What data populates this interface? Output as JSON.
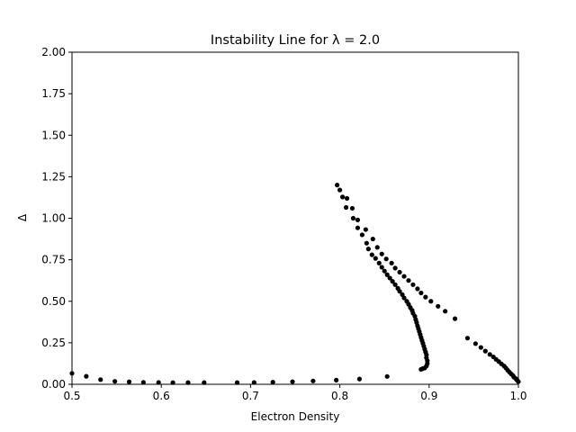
{
  "chart_data": {
    "type": "scatter",
    "title": "Instability Line for λ =  2.0",
    "xlabel": "Electron Density",
    "ylabel": "Δ",
    "xlim": [
      0.5,
      1.0
    ],
    "ylim": [
      0.0,
      2.0
    ],
    "xticks": [
      "0.5",
      "0.6",
      "0.7",
      "0.8",
      "0.9",
      "1.0"
    ],
    "yticks": [
      "0.00",
      "0.25",
      "0.50",
      "0.75",
      "1.00",
      "1.25",
      "1.50",
      "1.75",
      "2.00"
    ],
    "grid": false,
    "marker_color": "#000000",
    "points": [
      [
        0.5,
        0.066
      ],
      [
        0.516,
        0.048
      ],
      [
        0.532,
        0.028
      ],
      [
        0.548,
        0.018
      ],
      [
        0.564,
        0.015
      ],
      [
        0.58,
        0.012
      ],
      [
        0.597,
        0.011
      ],
      [
        0.613,
        0.01
      ],
      [
        0.63,
        0.01
      ],
      [
        0.648,
        0.01
      ],
      [
        0.685,
        0.01
      ],
      [
        0.704,
        0.011
      ],
      [
        0.725,
        0.013
      ],
      [
        0.747,
        0.016
      ],
      [
        0.77,
        0.02
      ],
      [
        0.796,
        0.025
      ],
      [
        0.822,
        0.032
      ],
      [
        0.853,
        0.047
      ],
      [
        0.797,
        1.2
      ],
      [
        0.8,
        1.17
      ],
      [
        0.803,
        1.128
      ],
      [
        0.808,
        1.12
      ],
      [
        0.807,
        1.065
      ],
      [
        0.814,
        1.06
      ],
      [
        0.815,
        1.0
      ],
      [
        0.82,
        0.99
      ],
      [
        0.82,
        0.942
      ],
      [
        0.825,
        0.9
      ],
      [
        0.829,
        0.932
      ],
      [
        0.83,
        0.85
      ],
      [
        0.832,
        0.815
      ],
      [
        0.836,
        0.78
      ],
      [
        0.837,
        0.875
      ],
      [
        0.84,
        0.758
      ],
      [
        0.842,
        0.825
      ],
      [
        0.844,
        0.73
      ],
      [
        0.847,
        0.785
      ],
      [
        0.847,
        0.705
      ],
      [
        0.85,
        0.682
      ],
      [
        0.852,
        0.755
      ],
      [
        0.853,
        0.66
      ],
      [
        0.856,
        0.64
      ],
      [
        0.858,
        0.73
      ],
      [
        0.859,
        0.62
      ],
      [
        0.862,
        0.6
      ],
      [
        0.862,
        0.7
      ],
      [
        0.865,
        0.578
      ],
      [
        0.867,
        0.675
      ],
      [
        0.867,
        0.56
      ],
      [
        0.87,
        0.54
      ],
      [
        0.872,
        0.65
      ],
      [
        0.872,
        0.52
      ],
      [
        0.875,
        0.5
      ],
      [
        0.877,
        0.625
      ],
      [
        0.877,
        0.482
      ],
      [
        0.879,
        0.462
      ],
      [
        0.881,
        0.445
      ],
      [
        0.882,
        0.6
      ],
      [
        0.882,
        0.428
      ],
      [
        0.884,
        0.41
      ],
      [
        0.885,
        0.39
      ],
      [
        0.887,
        0.575
      ],
      [
        0.886,
        0.372
      ],
      [
        0.887,
        0.352
      ],
      [
        0.888,
        0.335
      ],
      [
        0.889,
        0.318
      ],
      [
        0.89,
        0.3
      ],
      [
        0.891,
        0.55
      ],
      [
        0.891,
        0.282
      ],
      [
        0.892,
        0.265
      ],
      [
        0.893,
        0.248
      ],
      [
        0.894,
        0.23
      ],
      [
        0.895,
        0.212
      ],
      [
        0.896,
        0.195
      ],
      [
        0.897,
        0.178
      ],
      [
        0.897,
        0.16
      ],
      [
        0.898,
        0.142
      ],
      [
        0.898,
        0.125
      ],
      [
        0.897,
        0.11
      ],
      [
        0.895,
        0.098
      ],
      [
        0.893,
        0.095
      ],
      [
        0.891,
        0.09
      ],
      [
        0.896,
        0.525
      ],
      [
        0.902,
        0.5
      ],
      [
        0.91,
        0.47
      ],
      [
        0.918,
        0.44
      ],
      [
        0.929,
        0.395
      ],
      [
        0.943,
        0.278
      ],
      [
        0.952,
        0.245
      ],
      [
        0.958,
        0.222
      ],
      [
        0.963,
        0.2
      ],
      [
        0.968,
        0.18
      ],
      [
        0.972,
        0.165
      ],
      [
        0.975,
        0.15
      ],
      [
        0.978,
        0.137
      ],
      [
        0.981,
        0.123
      ],
      [
        0.984,
        0.11
      ],
      [
        0.986,
        0.098
      ],
      [
        0.988,
        0.085
      ],
      [
        0.99,
        0.073
      ],
      [
        0.992,
        0.062
      ],
      [
        0.994,
        0.052
      ],
      [
        0.995,
        0.043
      ],
      [
        0.997,
        0.035
      ],
      [
        0.998,
        0.028
      ],
      [
        0.999,
        0.022
      ],
      [
        1.0,
        0.016
      ]
    ]
  }
}
